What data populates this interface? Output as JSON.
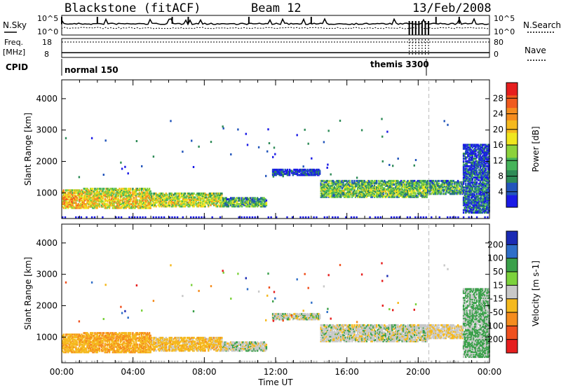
{
  "chart_data": {
    "type": "heatmap",
    "header": {
      "station": "Blackstone (fitACF)",
      "beam": "Beam 12",
      "date": "13/Feb/2008"
    },
    "top_panels": {
      "nsky_label": "N.Sky",
      "nsky_ticks": [
        "10^5",
        "10^0"
      ],
      "nsearch_label": "N.Search",
      "freq_label": "Freq.",
      "freq_unit": "[MHz]",
      "freq_ticks": [
        "18",
        "8"
      ],
      "nave_label": "Nave",
      "nave_ticks": [
        "80",
        "0"
      ],
      "cpid_label": "CPID",
      "cpid_modes": [
        {
          "name": "normal 150",
          "start_hour": 0,
          "end_hour": 19.5
        },
        {
          "name": "themis 3300",
          "start_hour": 19.5,
          "end_hour": 20.6
        }
      ],
      "freq_level_mhz": 10.5,
      "nave_level": 25
    },
    "x_axis": {
      "label": "Time UT",
      "tick_labels": [
        "00:00",
        "04:00",
        "08:00",
        "12:00",
        "16:00",
        "20:00",
        "00:00"
      ],
      "range_hours": [
        0,
        24
      ]
    },
    "y_axis": {
      "label": "Slant Range [km]",
      "tick_labels": [
        "1000",
        "2000",
        "3000",
        "4000"
      ],
      "range_km": [
        180,
        4600
      ]
    },
    "dashed_marker_hour": 20.6,
    "power_panel": {
      "colorbar_label": "Power [dB]",
      "colorbar_ticks": [
        "4",
        "8",
        "12",
        "16",
        "20",
        "24",
        "28"
      ],
      "colorbar_range": [
        0,
        32
      ],
      "colors": [
        "#1a1ae6",
        "#2255bb",
        "#2e8b57",
        "#46b45a",
        "#8cd23c",
        "#f0e61e",
        "#f5b91e",
        "#f58c1e",
        "#f05a1e",
        "#e61e1e"
      ]
    },
    "velocity_panel": {
      "colorbar_label": "Velocity [m s-1]",
      "colorbar_ticks": [
        "200",
        "100",
        "50",
        "15",
        "-15",
        "-50",
        "-100",
        "-200"
      ],
      "colors": [
        "#1a2ab4",
        "#2e6ec8",
        "#3aa04a",
        "#7cd23c",
        "#c8c8c8",
        "#f5b91e",
        "#f58c1e",
        "#f0501e",
        "#e61e1e"
      ]
    },
    "echo_regions": [
      {
        "start_hour": 0.0,
        "end_hour": 1.2,
        "range_km": [
          550,
          1150
        ],
        "power_db": 22,
        "velocity": -40
      },
      {
        "start_hour": 1.2,
        "end_hour": 5.0,
        "range_km": [
          550,
          1200
        ],
        "power_db": 20,
        "velocity": -45
      },
      {
        "start_hour": 5.0,
        "end_hour": 9.0,
        "range_km": [
          600,
          1050
        ],
        "power_db": 18,
        "velocity": -30
      },
      {
        "start_hour": 9.0,
        "end_hour": 11.5,
        "range_km": [
          600,
          900
        ],
        "power_db": 12,
        "velocity": 0
      },
      {
        "start_hour": 11.8,
        "end_hour": 14.5,
        "range_km": [
          1600,
          1800
        ],
        "power_db": 4,
        "velocity": 0
      },
      {
        "start_hour": 14.5,
        "end_hour": 20.5,
        "range_km": [
          900,
          1450
        ],
        "power_db": 14,
        "velocity": 0
      },
      {
        "start_hour": 20.5,
        "end_hour": 22.5,
        "range_km": [
          1000,
          1450
        ],
        "power_db": 12,
        "velocity": -10
      },
      {
        "start_hour": 22.5,
        "end_hour": 24.0,
        "range_km": [
          400,
          2600
        ],
        "power_db": 6,
        "velocity": 20
      }
    ]
  }
}
